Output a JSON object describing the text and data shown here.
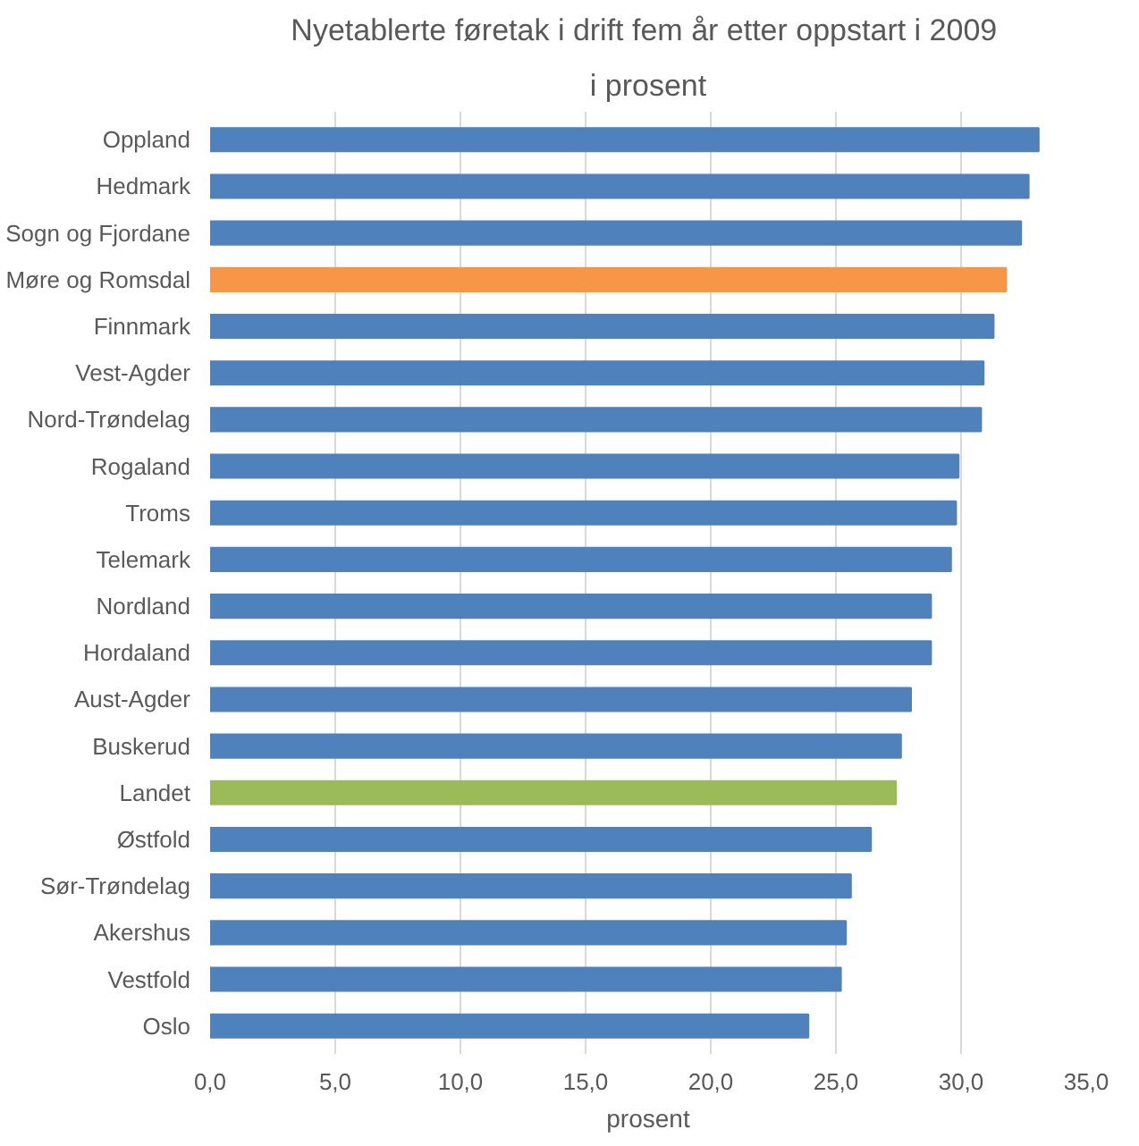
{
  "chart_data": {
    "type": "bar",
    "orientation": "horizontal",
    "title": "Nyetablerte føretak  i drift fem år etter oppstart i 2009",
    "subtitle": "i prosent",
    "xlabel": "prosent",
    "categories": [
      "Oppland",
      "Hedmark",
      "Sogn og Fjordane",
      "Møre og Romsdal",
      "Finnmark",
      "Vest-Agder",
      "Nord-Trøndelag",
      "Rogaland",
      "Troms",
      "Telemark",
      "Nordland",
      "Hordaland",
      "Aust-Agder",
      "Buskerud",
      "Landet",
      "Østfold",
      "Sør-Trøndelag",
      "Akershus",
      "Vestfold",
      "Oslo"
    ],
    "values": [
      33.1,
      32.7,
      32.4,
      31.8,
      31.3,
      30.9,
      30.8,
      29.9,
      29.8,
      29.6,
      28.8,
      28.8,
      28.0,
      27.6,
      27.4,
      26.4,
      25.6,
      25.4,
      25.2,
      23.9
    ],
    "colors": [
      "#4f81bd",
      "#4f81bd",
      "#4f81bd",
      "#f79646",
      "#4f81bd",
      "#4f81bd",
      "#4f81bd",
      "#4f81bd",
      "#4f81bd",
      "#4f81bd",
      "#4f81bd",
      "#4f81bd",
      "#4f81bd",
      "#4f81bd",
      "#9bbb59",
      "#4f81bd",
      "#4f81bd",
      "#4f81bd",
      "#4f81bd",
      "#4f81bd"
    ],
    "xlim": [
      0,
      35
    ],
    "xticks": [
      {
        "value": 0,
        "label": "0,0"
      },
      {
        "value": 5,
        "label": "5,0"
      },
      {
        "value": 10,
        "label": "10,0"
      },
      {
        "value": 15,
        "label": "15,0"
      },
      {
        "value": 20,
        "label": "20,0"
      },
      {
        "value": 25,
        "label": "25,0"
      },
      {
        "value": 30,
        "label": "30,0"
      },
      {
        "value": 35,
        "label": "35,0"
      }
    ],
    "grid": "x"
  }
}
